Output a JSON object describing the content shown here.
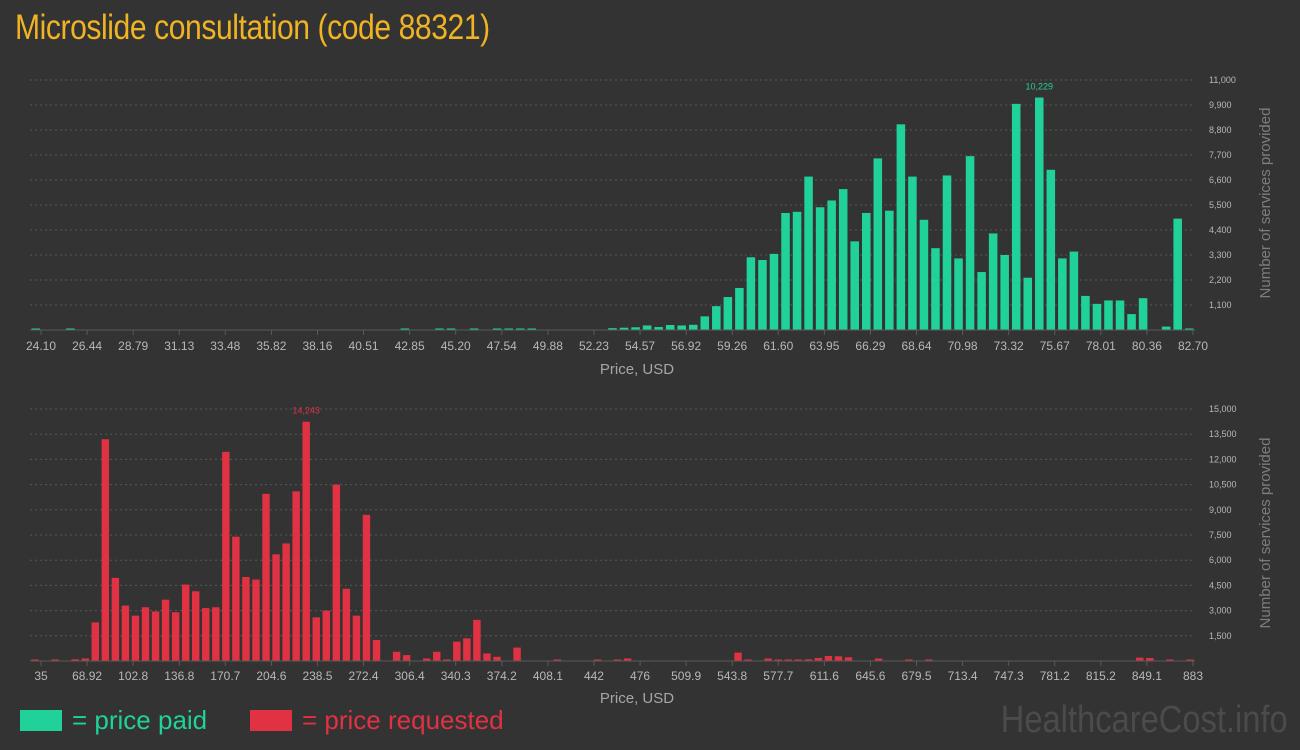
{
  "title": "Microslide consultation (code 88321)",
  "colors": {
    "background": "#333333",
    "title": "#f0b323",
    "paid": "#21d19a",
    "requested": "#e03243",
    "text": "#b8b8b8",
    "grid": "#555555"
  },
  "legend": {
    "paid": "= price paid",
    "requested": "= price requested"
  },
  "watermark": "HealthcareCost.info",
  "chart_data": [
    {
      "type": "bar",
      "series_name": "price paid",
      "color": "#21d19a",
      "xlabel": "Price, USD",
      "ylabel": "Number of services provided",
      "x_ticks": [
        "24.10",
        "26.44",
        "28.79",
        "31.13",
        "33.48",
        "35.82",
        "38.16",
        "40.51",
        "42.85",
        "45.20",
        "47.54",
        "49.88",
        "52.23",
        "54.57",
        "56.92",
        "59.26",
        "61.60",
        "63.95",
        "66.29",
        "68.64",
        "70.98",
        "73.32",
        "75.67",
        "78.01",
        "80.36",
        "82.70"
      ],
      "y_ticks": [
        "1,100",
        "2,200",
        "3,300",
        "4,400",
        "5,500",
        "6,600",
        "7,700",
        "8,800",
        "9,900",
        "11,000"
      ],
      "ylim": [
        0,
        11000
      ],
      "grid": true,
      "peak_label": "10,229",
      "values": [
        40,
        0,
        0,
        20,
        0,
        0,
        0,
        0,
        0,
        0,
        0,
        0,
        0,
        0,
        0,
        0,
        0,
        0,
        0,
        0,
        0,
        0,
        0,
        0,
        0,
        0,
        0,
        0,
        0,
        0,
        0,
        0,
        30,
        0,
        0,
        20,
        20,
        0,
        30,
        0,
        50,
        40,
        20,
        20,
        0,
        0,
        0,
        0,
        0,
        0,
        80,
        100,
        120,
        200,
        130,
        220,
        200,
        230,
        600,
        1050,
        1450,
        1850,
        3200,
        3080,
        3350,
        5150,
        5200,
        6750,
        5400,
        5700,
        6200,
        3900,
        5150,
        7550,
        5250,
        9050,
        6750,
        4850,
        3600,
        6800,
        3150,
        7650,
        2550,
        4250,
        3300,
        9950,
        2300,
        10229,
        7050,
        3150,
        3450,
        1500,
        1150,
        1300,
        1300,
        700,
        1400,
        0,
        150,
        4900,
        40
      ]
    },
    {
      "type": "bar",
      "series_name": "price requested",
      "color": "#e03243",
      "xlabel": "Price, USD",
      "ylabel": "Number of services provided",
      "x_ticks": [
        "35",
        "68.92",
        "102.8",
        "136.8",
        "170.7",
        "204.6",
        "238.5",
        "272.4",
        "306.4",
        "340.3",
        "374.2",
        "408.1",
        "442",
        "476",
        "509.9",
        "543.8",
        "577.7",
        "611.6",
        "645.6",
        "679.5",
        "713.4",
        "747.3",
        "781.2",
        "815.2",
        "849.1",
        "883"
      ],
      "y_ticks": [
        "1,500",
        "3,000",
        "4,500",
        "6,000",
        "7,500",
        "9,000",
        "10,500",
        "12,000",
        "13,500",
        "15,000"
      ],
      "ylim": [
        0,
        15000
      ],
      "grid": true,
      "peak_label": "14,243",
      "values": [
        20,
        0,
        60,
        0,
        100,
        150,
        2300,
        13200,
        4950,
        3300,
        2700,
        3200,
        2950,
        3650,
        2900,
        4550,
        4150,
        3150,
        3200,
        12450,
        7400,
        5000,
        4850,
        9950,
        6350,
        7000,
        10100,
        14243,
        2600,
        3000,
        10500,
        4300,
        2700,
        8700,
        1250,
        0,
        550,
        350,
        0,
        150,
        550,
        50,
        1150,
        1350,
        2450,
        450,
        250,
        0,
        800,
        0,
        0,
        0,
        50,
        0,
        0,
        0,
        30,
        0,
        60,
        150,
        0,
        0,
        0,
        0,
        0,
        0,
        0,
        0,
        0,
        0,
        500,
        80,
        0,
        150,
        80,
        30,
        80,
        100,
        180,
        300,
        280,
        220,
        0,
        0,
        150,
        0,
        0,
        50,
        0,
        50,
        0,
        0,
        0,
        0,
        0,
        0,
        0,
        0,
        0,
        0,
        0,
        0,
        0,
        0,
        0,
        0,
        0,
        0,
        0,
        0,
        200,
        180,
        0,
        50,
        0,
        50
      ]
    }
  ]
}
